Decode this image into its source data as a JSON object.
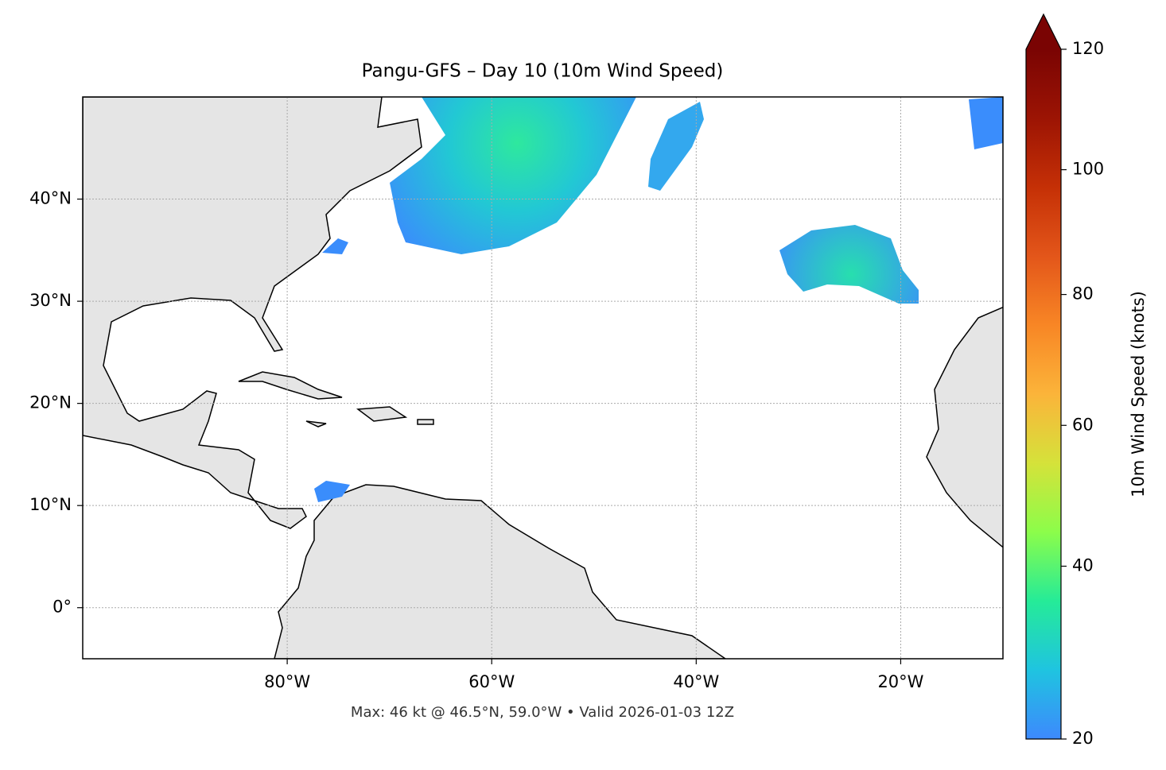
{
  "chart_data": {
    "type": "map",
    "title": "Pangu-GFS – Day 10 (10m Wind Speed)",
    "note": "Max: 46 kt @ 46.5°N, 59.0°W • Valid 2026-01-03 12Z",
    "xlim": [
      -100,
      -10
    ],
    "ylim": [
      -5,
      50
    ],
    "xticks": [
      {
        "value": -80,
        "label": "80°W"
      },
      {
        "value": -60,
        "label": "60°W"
      },
      {
        "value": -40,
        "label": "40°W"
      },
      {
        "value": -20,
        "label": "20°W"
      }
    ],
    "yticks": [
      {
        "value": 0,
        "label": "0°"
      },
      {
        "value": 10,
        "label": "10°N"
      },
      {
        "value": 20,
        "label": "20°N"
      },
      {
        "value": 30,
        "label": "30°N"
      },
      {
        "value": 40,
        "label": "40°N"
      }
    ],
    "grid": true,
    "colorbar": {
      "label": "10m Wind Speed (knots)",
      "lim": [
        20,
        120
      ],
      "ticks": [
        20,
        40,
        60,
        80,
        100,
        120
      ],
      "norm": "power",
      "gamma": 0.86,
      "extend": "max",
      "colors": [
        "#3d89fd",
        "#1fc4e0",
        "#25eb98",
        "#8cfd4a",
        "#d5e23a",
        "#fbb43a",
        "#f88625",
        "#e3561a",
        "#c53006",
        "#9c1404",
        "#7a0403"
      ]
    }
  }
}
